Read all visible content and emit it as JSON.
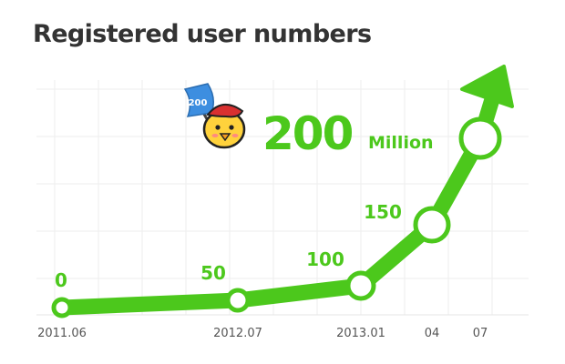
{
  "chart_data": {
    "type": "line",
    "title": "Registered user numbers",
    "x": [
      "2011.06",
      "2012.07",
      "2013.01",
      "04",
      "07"
    ],
    "values": [
      0,
      50,
      100,
      150,
      200
    ],
    "data_labels": [
      "0",
      "50",
      "100",
      "150",
      "200"
    ],
    "unit_label": "Million",
    "ylim": [
      0,
      260
    ],
    "grid": true,
    "trend_arrow": true
  },
  "colors": {
    "line": "#4cc81c",
    "grid": "#eeeeee",
    "title": "#333333",
    "tick": "#555555"
  },
  "mascot": {
    "icon": "chick-mascot-icon",
    "flag_text": "200"
  }
}
